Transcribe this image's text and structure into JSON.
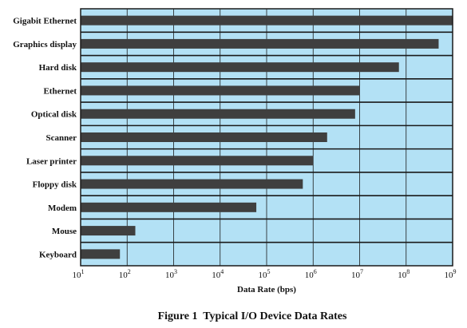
{
  "chart_data": {
    "type": "bar",
    "orientation": "horizontal",
    "scale": "log",
    "categories": [
      "Gigabit Ethernet",
      "Graphics display",
      "Hard disk",
      "Ethernet",
      "Optical disk",
      "Scanner",
      "Laser printer",
      "Floppy disk",
      "Modem",
      "Mouse",
      "Keyboard"
    ],
    "values": [
      1000000000,
      500000000,
      70000000,
      10000000,
      8000000,
      2000000,
      1000000,
      600000,
      60000,
      150,
      70
    ],
    "xlabel": "Data Rate (bps)",
    "xlim": [
      10,
      1000000000
    ],
    "xticks": [
      {
        "base": "10",
        "exp": "1"
      },
      {
        "base": "10",
        "exp": "2"
      },
      {
        "base": "10",
        "exp": "3"
      },
      {
        "base": "10",
        "exp": "4"
      },
      {
        "base": "10",
        "exp": "5"
      },
      {
        "base": "10",
        "exp": "6"
      },
      {
        "base": "10",
        "exp": "7"
      },
      {
        "base": "10",
        "exp": "8"
      },
      {
        "base": "10",
        "exp": "9"
      }
    ],
    "grid": true,
    "colors": {
      "background": "#b3e1f5",
      "bar": "#3f3f3f",
      "frame": "#1a1a1a"
    }
  },
  "caption": "Figure 1  Typical I/O Device Data Rates"
}
